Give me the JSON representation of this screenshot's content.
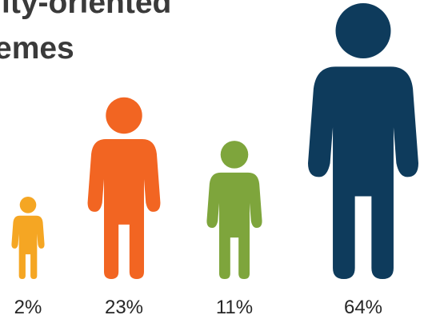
{
  "title_lines": [
    "ity-oriented",
    "emes"
  ],
  "chart_data": {
    "type": "pictograph",
    "values": [
      2,
      23,
      11,
      64
    ],
    "labels": [
      "2%",
      "23%",
      "11%",
      "64%"
    ],
    "colors": [
      "#f5a623",
      "#f26522",
      "#7ea53c",
      "#0e3b5c"
    ]
  }
}
